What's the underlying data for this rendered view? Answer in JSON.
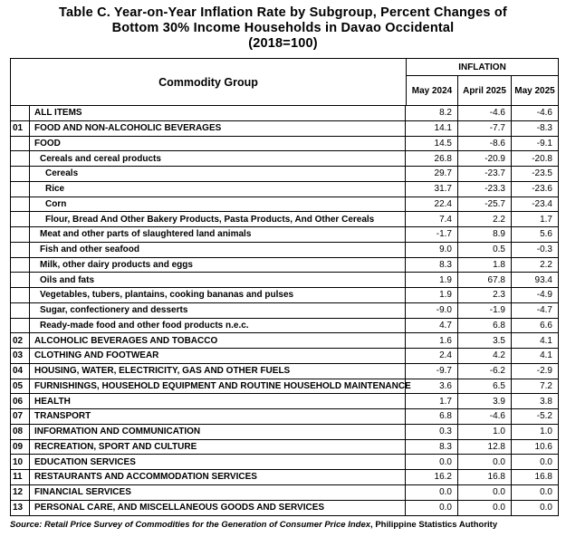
{
  "title": {
    "line1": "Table C. Year-on-Year Inflation Rate by Subgroup, Percent Changes of",
    "line2": "Bottom 30% Income Households in Davao Occidental",
    "line3": "(2018=100)"
  },
  "header": {
    "commodity_group": "Commodity Group",
    "inflation": "INFLATION",
    "col1": "May 2024",
    "col2": "April 2025",
    "col3": "May 2025"
  },
  "rows": [
    {
      "num": "",
      "label": "ALL ITEMS",
      "indent": 0,
      "v1": "8.2",
      "v2": "-4.6",
      "v3": "-4.6"
    },
    {
      "num": "01",
      "label": "FOOD AND NON-ALCOHOLIC BEVERAGES",
      "indent": 0,
      "v1": "14.1",
      "v2": "-7.7",
      "v3": "-8.3"
    },
    {
      "num": "",
      "label": "FOOD",
      "indent": 0,
      "v1": "14.5",
      "v2": "-8.6",
      "v3": "-9.1"
    },
    {
      "num": "",
      "label": "Cereals and cereal products",
      "indent": 1,
      "v1": "26.8",
      "v2": "-20.9",
      "v3": "-20.8"
    },
    {
      "num": "",
      "label": "Cereals",
      "indent": 2,
      "v1": "29.7",
      "v2": "-23.7",
      "v3": "-23.5"
    },
    {
      "num": "",
      "label": "Rice",
      "indent": 2,
      "v1": "31.7",
      "v2": "-23.3",
      "v3": "-23.6"
    },
    {
      "num": "",
      "label": "Corn",
      "indent": 2,
      "v1": "22.4",
      "v2": "-25.7",
      "v3": "-23.4"
    },
    {
      "num": "",
      "label": "Flour, Bread And Other Bakery Products, Pasta Products, And Other Cereals",
      "indent": 2,
      "v1": "7.4",
      "v2": "2.2",
      "v3": "1.7"
    },
    {
      "num": "",
      "label": "Meat and other parts of slaughtered land animals",
      "indent": 1,
      "v1": "-1.7",
      "v2": "8.9",
      "v3": "5.6"
    },
    {
      "num": "",
      "label": "Fish and other seafood",
      "indent": 1,
      "v1": "9.0",
      "v2": "0.5",
      "v3": "-0.3"
    },
    {
      "num": "",
      "label": "Milk, other dairy products and eggs",
      "indent": 1,
      "v1": "8.3",
      "v2": "1.8",
      "v3": "2.2"
    },
    {
      "num": "",
      "label": "Oils and fats",
      "indent": 1,
      "v1": "1.9",
      "v2": "67.8",
      "v3": "93.4"
    },
    {
      "num": "",
      "label": "Vegetables, tubers, plantains, cooking bananas and pulses",
      "indent": 1,
      "v1": "1.9",
      "v2": "2.3",
      "v3": "-4.9"
    },
    {
      "num": "",
      "label": "Sugar, confectionery and desserts",
      "indent": 1,
      "v1": "-9.0",
      "v2": "-1.9",
      "v3": "-4.7"
    },
    {
      "num": "",
      "label": "Ready-made food and other food products n.e.c.",
      "indent": 1,
      "v1": "4.7",
      "v2": "6.8",
      "v3": "6.6"
    },
    {
      "num": "02",
      "label": "ALCOHOLIC BEVERAGES  AND TOBACCO",
      "indent": 0,
      "v1": "1.6",
      "v2": "3.5",
      "v3": "4.1"
    },
    {
      "num": "03",
      "label": "CLOTHING AND FOOTWEAR",
      "indent": 0,
      "v1": "2.4",
      "v2": "4.2",
      "v3": "4.1"
    },
    {
      "num": "04",
      "label": "HOUSING, WATER, ELECTRICITY, GAS AND OTHER FUELS",
      "indent": 0,
      "v1": "-9.7",
      "v2": "-6.2",
      "v3": "-2.9"
    },
    {
      "num": "05",
      "label": "FURNISHINGS, HOUSEHOLD EQUIPMENT AND ROUTINE HOUSEHOLD MAINTENANCE",
      "indent": 0,
      "v1": "3.6",
      "v2": "6.5",
      "v3": "7.2"
    },
    {
      "num": "06",
      "label": "HEALTH",
      "indent": 0,
      "v1": "1.7",
      "v2": "3.9",
      "v3": "3.8"
    },
    {
      "num": "07",
      "label": "TRANSPORT",
      "indent": 0,
      "v1": "6.8",
      "v2": "-4.6",
      "v3": "-5.2"
    },
    {
      "num": "08",
      "label": "INFORMATION AND COMMUNICATION",
      "indent": 0,
      "v1": "0.3",
      "v2": "1.0",
      "v3": "1.0"
    },
    {
      "num": "09",
      "label": "RECREATION, SPORT AND CULTURE",
      "indent": 0,
      "v1": "8.3",
      "v2": "12.8",
      "v3": "10.6"
    },
    {
      "num": "10",
      "label": "EDUCATION SERVICES",
      "indent": 0,
      "v1": "0.0",
      "v2": "0.0",
      "v3": "0.0"
    },
    {
      "num": "11",
      "label": "RESTAURANTS AND ACCOMMODATION SERVICES",
      "indent": 0,
      "v1": "16.2",
      "v2": "16.8",
      "v3": "16.8"
    },
    {
      "num": "12",
      "label": "FINANCIAL SERVICES",
      "indent": 0,
      "v1": "0.0",
      "v2": "0.0",
      "v3": "0.0"
    },
    {
      "num": "13",
      "label": "PERSONAL CARE, AND MISCELLANEOUS GOODS AND SERVICES",
      "indent": 0,
      "v1": "0.0",
      "v2": "0.0",
      "v3": "0.0"
    }
  ],
  "source": {
    "prefix": "Source: Retail Price Survey of Commodities for the Generation of Consumer Price Index",
    "suffix": ", Philippine Statistics Authority"
  }
}
